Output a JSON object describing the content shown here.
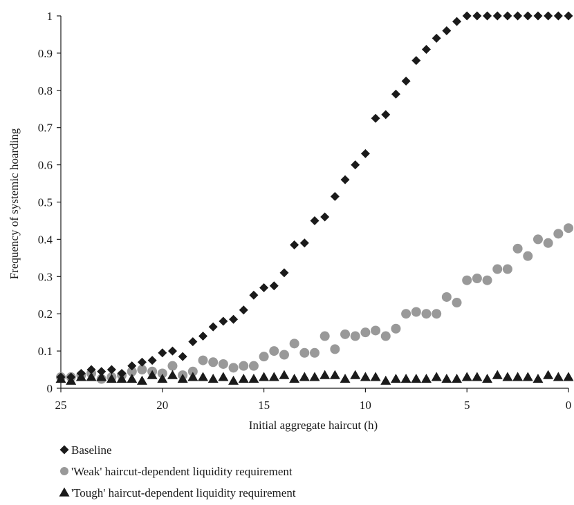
{
  "chart_data": {
    "type": "scatter",
    "title": "",
    "xlabel": "Initial aggregate haircut (h)",
    "ylabel": "Frequency of systemic hoarding",
    "xlim": [
      25,
      0
    ],
    "ylim": [
      0,
      1
    ],
    "x_reversed": true,
    "grid": false,
    "legend_position": "bottom",
    "x_ticks": [
      "25",
      "20",
      "15",
      "10",
      "5",
      "0"
    ],
    "y_ticks": [
      "0",
      "0.1",
      "0.2",
      "0.3",
      "0.4",
      "0.5",
      "0.6",
      "0.7",
      "0.8",
      "0.9",
      "1"
    ],
    "x": [
      25,
      24.5,
      24,
      23.5,
      23,
      22.5,
      22,
      21.5,
      21,
      20.5,
      20,
      19.5,
      19,
      18.5,
      18,
      17.5,
      17,
      16.5,
      16,
      15.5,
      15,
      14.5,
      14,
      13.5,
      13,
      12.5,
      12,
      11.5,
      11,
      10.5,
      10,
      9.5,
      9,
      8.5,
      8,
      7.5,
      7,
      6.5,
      6,
      5.5,
      5,
      4.5,
      4,
      3.5,
      3,
      2.5,
      2,
      1.5,
      1,
      0.5,
      0
    ],
    "series": [
      {
        "name": "Baseline",
        "marker": "diamond",
        "color": "#1a1a1a",
        "values": [
          0.03,
          0.03,
          0.04,
          0.05,
          0.045,
          0.05,
          0.04,
          0.06,
          0.07,
          0.075,
          0.095,
          0.1,
          0.085,
          0.125,
          0.14,
          0.165,
          0.18,
          0.185,
          0.21,
          0.25,
          0.27,
          0.275,
          0.31,
          0.385,
          0.39,
          0.45,
          0.46,
          0.515,
          0.56,
          0.6,
          0.63,
          0.725,
          0.735,
          0.79,
          0.825,
          0.88,
          0.91,
          0.94,
          0.96,
          0.985,
          1,
          1,
          1,
          1,
          1,
          1,
          1,
          1,
          1,
          1,
          1
        ]
      },
      {
        "name": "'Weak' haircut-dependent liquidity requirement",
        "marker": "circle",
        "color": "#999999",
        "values": [
          0.03,
          0.03,
          0.035,
          0.04,
          0.025,
          0.03,
          0.035,
          0.045,
          0.05,
          0.045,
          0.04,
          0.06,
          0.035,
          0.045,
          0.075,
          0.07,
          0.065,
          0.055,
          0.06,
          0.06,
          0.085,
          0.1,
          0.09,
          0.12,
          0.095,
          0.095,
          0.14,
          0.105,
          0.145,
          0.14,
          0.15,
          0.155,
          0.14,
          0.16,
          0.2,
          0.205,
          0.2,
          0.2,
          0.245,
          0.23,
          0.29,
          0.295,
          0.29,
          0.32,
          0.32,
          0.375,
          0.355,
          0.4,
          0.39,
          0.415,
          0.43
        ]
      },
      {
        "name": "'Tough' haircut-dependent liquidity requirement",
        "marker": "triangle",
        "color": "#1a1a1a",
        "values": [
          0.025,
          0.02,
          0.03,
          0.03,
          0.03,
          0.025,
          0.025,
          0.025,
          0.02,
          0.035,
          0.025,
          0.035,
          0.025,
          0.03,
          0.03,
          0.025,
          0.03,
          0.02,
          0.025,
          0.025,
          0.03,
          0.03,
          0.035,
          0.025,
          0.03,
          0.03,
          0.035,
          0.035,
          0.025,
          0.035,
          0.03,
          0.03,
          0.02,
          0.025,
          0.025,
          0.025,
          0.025,
          0.03,
          0.025,
          0.025,
          0.03,
          0.03,
          0.025,
          0.035,
          0.03,
          0.03,
          0.03,
          0.025,
          0.035,
          0.03,
          0.03
        ]
      }
    ]
  }
}
